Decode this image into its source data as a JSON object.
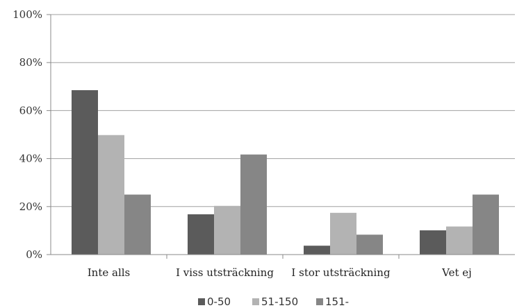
{
  "chart_data": {
    "type": "bar",
    "categories": [
      "Inte alls",
      "I viss utsträckning",
      "I stor utsträckning",
      "Vet ej"
    ],
    "series": [
      {
        "name": "0-50",
        "color": "#5b5b5b",
        "values": [
          68.5,
          16.8,
          3.7,
          10.1
        ]
      },
      {
        "name": "51-150",
        "color": "#b3b3b3",
        "values": [
          49.8,
          20.3,
          17.4,
          11.7
        ]
      },
      {
        "name": "151-",
        "color": "#868686",
        "values": [
          25.0,
          41.7,
          8.3,
          25.0
        ]
      }
    ],
    "ylim": [
      0,
      100
    ],
    "yticks": [
      "0%",
      "20%",
      "40%",
      "60%",
      "80%",
      "100%"
    ],
    "grid": true,
    "legend_position": "bottom-center"
  }
}
